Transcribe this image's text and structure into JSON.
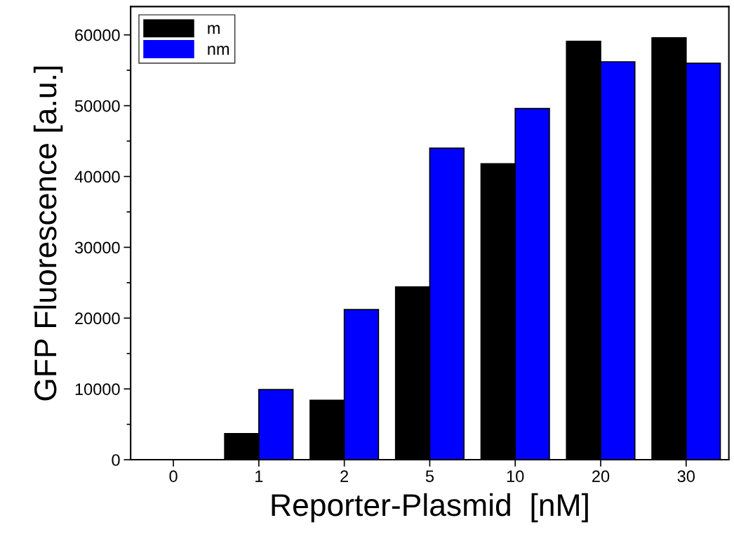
{
  "chart_data": {
    "type": "bar",
    "xlabel": "Reporter-Plasmid  [nM]",
    "ylabel": "GFP Fluorescence [a.u.]",
    "categories": [
      "0",
      "1",
      "2",
      "5",
      "10",
      "20",
      "30"
    ],
    "series": [
      {
        "name": "m",
        "color": "#000000",
        "values": [
          0,
          3700,
          8400,
          24400,
          41800,
          59100,
          59600
        ]
      },
      {
        "name": "nm",
        "color": "#0000ff",
        "values": [
          0,
          9900,
          21200,
          44000,
          49600,
          56200,
          56000
        ]
      }
    ],
    "ylim": [
      0,
      64000
    ],
    "yticks": [
      0,
      10000,
      20000,
      30000,
      40000,
      50000,
      60000
    ],
    "grid": false,
    "legend": "top left"
  }
}
